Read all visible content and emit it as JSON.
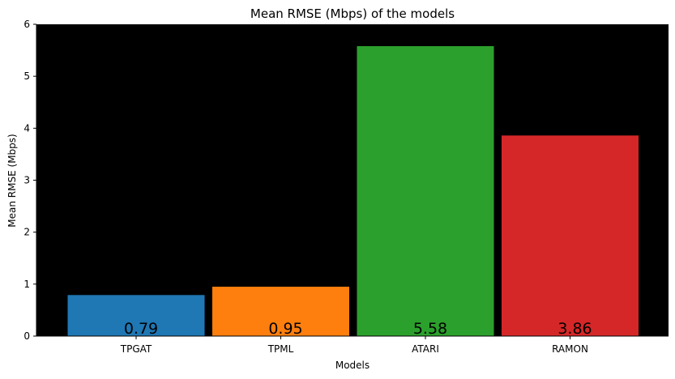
{
  "chart_data": {
    "type": "bar",
    "title": "Mean RMSE (Mbps) of the models",
    "xlabel": "Models",
    "ylabel": "Mean RMSE (Mbps)",
    "categories": [
      "TPGAT",
      "TPML",
      "ATARI",
      "RAMON"
    ],
    "values": [
      0.79,
      0.95,
      5.58,
      3.86
    ],
    "value_labels": [
      "0.79",
      "0.95",
      "5.58",
      "3.86"
    ],
    "colors": [
      "#1f77b4",
      "#ff7f0e",
      "#2ca02c",
      "#d62728"
    ],
    "ylim": [
      0,
      6
    ],
    "yticks": [
      0,
      1,
      2,
      3,
      4,
      5,
      6
    ],
    "plot_background": "#000000",
    "grid": false
  }
}
